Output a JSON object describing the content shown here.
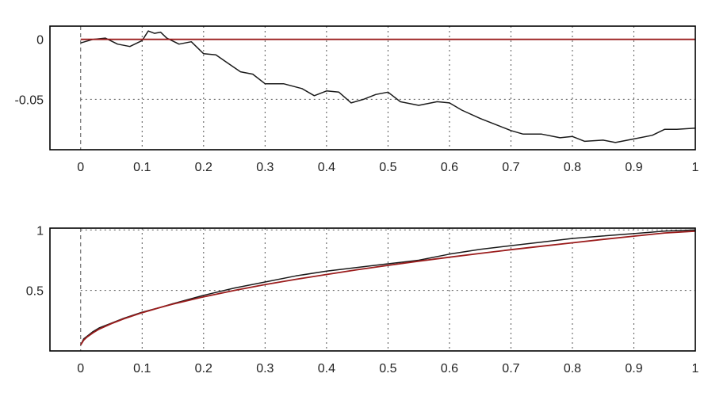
{
  "chart_data": [
    {
      "type": "line",
      "title": "",
      "xlabel": "",
      "ylabel": "",
      "xlim": [
        -0.05,
        1.0
      ],
      "ylim": [
        -0.092,
        0.011
      ],
      "xticks": [
        0,
        0.1,
        0.2,
        0.3,
        0.4,
        0.5,
        0.6,
        0.7,
        0.8,
        0.9,
        1
      ],
      "xtick_labels": [
        "0",
        "0.1",
        "0.2",
        "0.3",
        "0.4",
        "0.5",
        "0.6",
        "0.7",
        "0.8",
        "0.9",
        "1"
      ],
      "yticks": [
        0,
        -0.05
      ],
      "ytick_labels": [
        "0",
        "-0.05"
      ],
      "hgrid": [
        0,
        -0.05
      ],
      "grid": true,
      "legend": "none",
      "series": [
        {
          "color": "#1a1a1a",
          "x": [
            0,
            0.02,
            0.04,
            0.06,
            0.08,
            0.1,
            0.11,
            0.12,
            0.13,
            0.14,
            0.16,
            0.18,
            0.2,
            0.22,
            0.24,
            0.26,
            0.28,
            0.3,
            0.33,
            0.36,
            0.38,
            0.4,
            0.42,
            0.44,
            0.46,
            0.48,
            0.5,
            0.52,
            0.55,
            0.58,
            0.6,
            0.62,
            0.65,
            0.68,
            0.7,
            0.72,
            0.75,
            0.78,
            0.8,
            0.82,
            0.85,
            0.87,
            0.9,
            0.93,
            0.95,
            0.97,
            1.0
          ],
          "y": [
            -0.003,
            0.0,
            0.001,
            -0.004,
            -0.006,
            -0.001,
            0.007,
            0.005,
            0.006,
            0.001,
            -0.004,
            -0.002,
            -0.012,
            -0.013,
            -0.02,
            -0.027,
            -0.029,
            -0.037,
            -0.037,
            -0.041,
            -0.047,
            -0.043,
            -0.044,
            -0.053,
            -0.05,
            -0.046,
            -0.044,
            -0.052,
            -0.055,
            -0.052,
            -0.053,
            -0.059,
            -0.066,
            -0.072,
            -0.076,
            -0.079,
            -0.079,
            -0.082,
            -0.081,
            -0.085,
            -0.084,
            -0.086,
            -0.083,
            -0.08,
            -0.075,
            -0.075,
            -0.074
          ]
        },
        {
          "color": "#9b1c1c",
          "x": [
            0,
            1
          ],
          "y": [
            0,
            0
          ]
        }
      ]
    },
    {
      "type": "line",
      "title": "",
      "xlabel": "",
      "ylabel": "",
      "xlim": [
        -0.05,
        1.0
      ],
      "ylim": [
        0.0,
        1.015
      ],
      "xticks": [
        0,
        0.1,
        0.2,
        0.3,
        0.4,
        0.5,
        0.6,
        0.7,
        0.8,
        0.9,
        1
      ],
      "xtick_labels": [
        "0",
        "0.1",
        "0.2",
        "0.3",
        "0.4",
        "0.5",
        "0.6",
        "0.7",
        "0.8",
        "0.9",
        "1"
      ],
      "yticks": [
        1,
        0.5
      ],
      "ytick_labels": [
        "1",
        "0.5"
      ],
      "hgrid": [
        1,
        0.5
      ],
      "grid": true,
      "legend": "none",
      "series": [
        {
          "color": "#1a1a1a",
          "x": [
            0,
            0.005,
            0.01,
            0.02,
            0.03,
            0.05,
            0.07,
            0.1,
            0.13,
            0.15,
            0.2,
            0.25,
            0.3,
            0.35,
            0.4,
            0.45,
            0.5,
            0.55,
            0.6,
            0.65,
            0.7,
            0.75,
            0.8,
            0.85,
            0.9,
            0.95,
            1.0
          ],
          "y": [
            0.05,
            0.1,
            0.12,
            0.16,
            0.19,
            0.23,
            0.27,
            0.32,
            0.36,
            0.39,
            0.46,
            0.52,
            0.57,
            0.62,
            0.66,
            0.69,
            0.72,
            0.75,
            0.8,
            0.84,
            0.87,
            0.9,
            0.93,
            0.95,
            0.97,
            0.99,
            1.0
          ]
        },
        {
          "color": "#9b1c1c",
          "x": [
            0,
            0.005,
            0.01,
            0.02,
            0.03,
            0.05,
            0.07,
            0.1,
            0.13,
            0.15,
            0.2,
            0.25,
            0.3,
            0.35,
            0.4,
            0.45,
            0.5,
            0.55,
            0.6,
            0.65,
            0.7,
            0.75,
            0.8,
            0.85,
            0.9,
            0.95,
            1.0
          ],
          "y": [
            0.05,
            0.09,
            0.113,
            0.15,
            0.18,
            0.226,
            0.265,
            0.316,
            0.36,
            0.387,
            0.447,
            0.5,
            0.548,
            0.592,
            0.632,
            0.671,
            0.707,
            0.742,
            0.775,
            0.806,
            0.837,
            0.866,
            0.894,
            0.922,
            0.949,
            0.975,
            0.99
          ]
        }
      ]
    }
  ]
}
